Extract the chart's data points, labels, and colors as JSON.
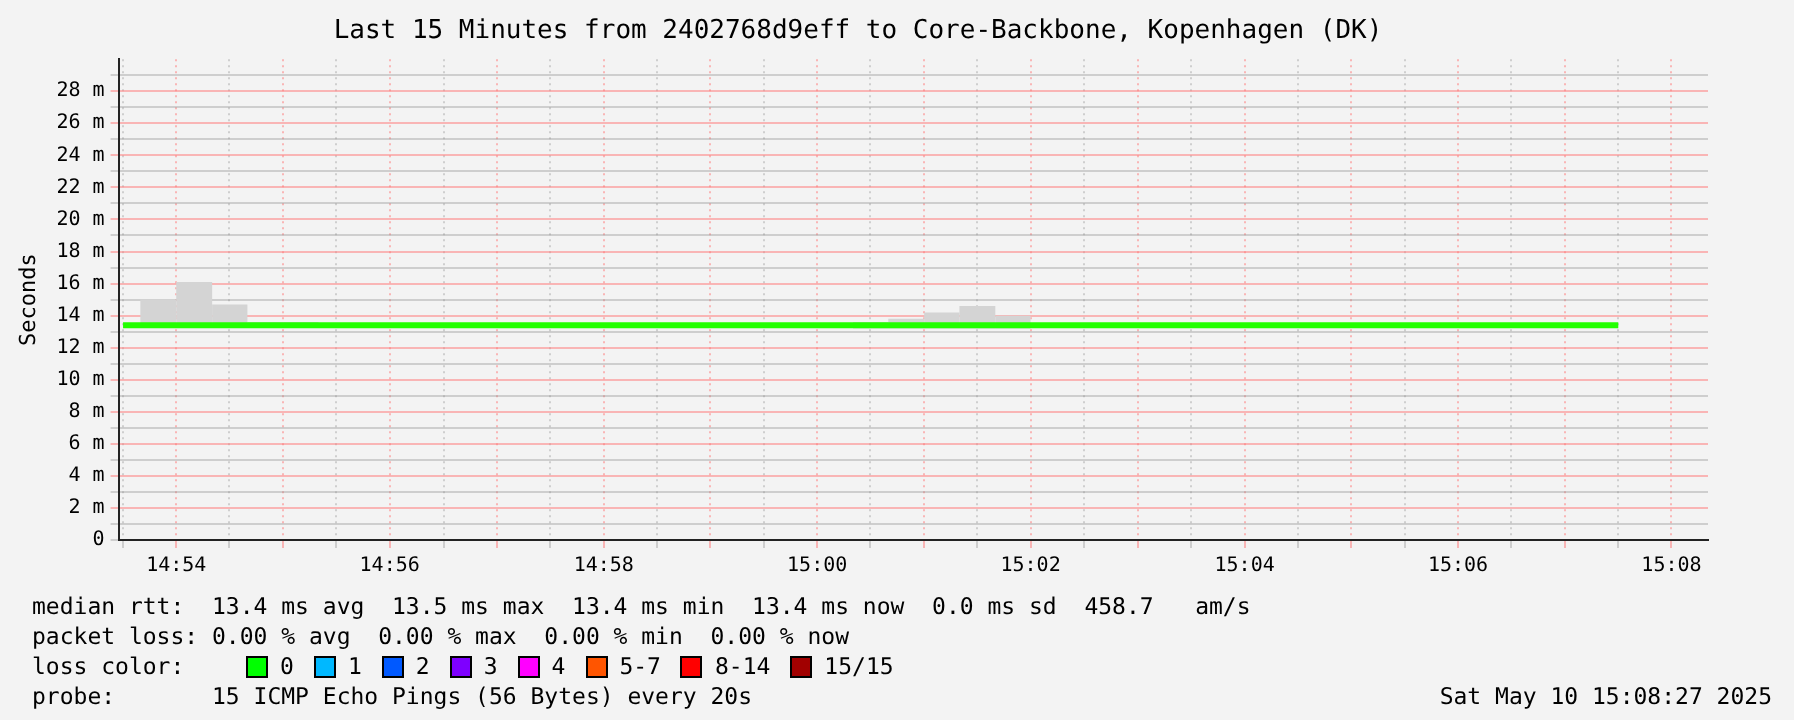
{
  "chart_data": {
    "type": "step",
    "title": "Last 15 Minutes from 2402768d9eff to Core-Backbone, Kopenhagen (DK)",
    "ylabel": "Seconds",
    "x": [
      14.8917,
      14.8944,
      14.9,
      14.9056,
      14.9111,
      14.9167,
      14.9222,
      14.96,
      15.0056,
      15.0111,
      15.0167,
      15.0222,
      15.0278,
      15.0333,
      15.125
    ],
    "series": [
      {
        "color": "#22ff00",
        "values": [
          13.4,
          13.4,
          13.4,
          13.4,
          13.4,
          13.4,
          13.4,
          13.4,
          13.4,
          13.4,
          13.4,
          13.4,
          13.4,
          13.4,
          13.4
        ],
        "lower": [
          null,
          13.3,
          13.3,
          13.3,
          13.3,
          13.3,
          13.3,
          null,
          13.2,
          13.2,
          13.2,
          13.2,
          13.2,
          13.2,
          null
        ],
        "upper": [
          null,
          15.0,
          16.1,
          14.7,
          13.6,
          13.6,
          13.6,
          null,
          13.6,
          13.8,
          14.2,
          14.6,
          14.0,
          14.0,
          null
        ]
      }
    ],
    "xlim": [
      14.891,
      15.139
    ],
    "xticks": [
      {
        "value": 14.8917,
        "label": null
      },
      {
        "value": 14.9,
        "label": "14:54"
      },
      {
        "value": 14.9083,
        "label": null
      },
      {
        "value": 14.9167,
        "label": null
      },
      {
        "value": 14.925,
        "label": null
      },
      {
        "value": 14.9333,
        "label": "14:56"
      },
      {
        "value": 14.9417,
        "label": null
      },
      {
        "value": 14.95,
        "label": null
      },
      {
        "value": 14.9583,
        "label": null
      },
      {
        "value": 14.9667,
        "label": "14:58"
      },
      {
        "value": 14.975,
        "label": null
      },
      {
        "value": 14.9833,
        "label": null
      },
      {
        "value": 14.9917,
        "label": null
      },
      {
        "value": 15,
        "label": "15:00"
      },
      {
        "value": 15.0083,
        "label": null
      },
      {
        "value": 15.0167,
        "label": null
      },
      {
        "value": 15.025,
        "label": null
      },
      {
        "value": 15.0333,
        "label": "15:02"
      },
      {
        "value": 15.0417,
        "label": null
      },
      {
        "value": 15.05,
        "label": null
      },
      {
        "value": 15.0583,
        "label": null
      },
      {
        "value": 15.0667,
        "label": "15:04"
      },
      {
        "value": 15.075,
        "label": null
      },
      {
        "value": 15.0833,
        "label": null
      },
      {
        "value": 15.0917,
        "label": null
      },
      {
        "value": 15.1,
        "label": "15:06"
      },
      {
        "value": 15.1083,
        "label": null
      },
      {
        "value": 15.1167,
        "label": null
      },
      {
        "value": 15.125,
        "label": null
      },
      {
        "value": 15.1333,
        "label": "15:08"
      }
    ],
    "ylim": [
      0,
      30
    ],
    "yticks": [
      0,
      {
        "value": 1,
        "label": null
      },
      {
        "value": 2,
        "label": "2 m"
      },
      {
        "value": 3,
        "label": null
      },
      {
        "value": 4,
        "label": "4 m"
      },
      {
        "value": 5,
        "label": null
      },
      {
        "value": 6,
        "label": "6 m"
      },
      {
        "value": 7,
        "label": null
      },
      {
        "value": 8,
        "label": "8 m"
      },
      {
        "value": 9,
        "label": null
      },
      {
        "value": 10,
        "label": "10 m"
      },
      {
        "value": 11,
        "label": null
      },
      {
        "value": 12,
        "label": "12 m"
      },
      {
        "value": 13,
        "label": null
      },
      {
        "value": 14,
        "label": "14 m"
      },
      {
        "value": 15,
        "label": null
      },
      {
        "value": 16,
        "label": "16 m"
      },
      {
        "value": 17,
        "label": null
      },
      {
        "value": 18,
        "label": "18 m"
      },
      {
        "value": 19,
        "label": null
      },
      {
        "value": 20,
        "label": "20 m"
      },
      {
        "value": 21,
        "label": null
      },
      {
        "value": 22,
        "label": "22 m"
      },
      {
        "value": 23,
        "label": null
      },
      {
        "value": 24,
        "label": "24 m"
      },
      {
        "value": 25,
        "label": null
      },
      {
        "value": 26,
        "label": "26 m"
      },
      {
        "value": 27,
        "label": null
      },
      {
        "value": 28,
        "label": "28 m"
      },
      {
        "value": 29,
        "label": null
      }
    ],
    "grid": true,
    "legend": false,
    "annotations": [
      "median rtt:  13.4 ms avg  13.5 ms max  13.4 ms min  13.4 ms now  0.0 ms sd  458.7   am/s",
      "packet loss: 0.00 % avg  0.00 % max  0.00 % min  0.00 % now",
      "loss color:",
      "0",
      "1",
      "2",
      "3",
      "4",
      "5-7",
      "8-14",
      "15/15",
      "probe:       15 ICMP Echo Pings (56 Bytes) every 20s",
      "Sat May 10 15:08:27 2025"
    ]
  }
}
